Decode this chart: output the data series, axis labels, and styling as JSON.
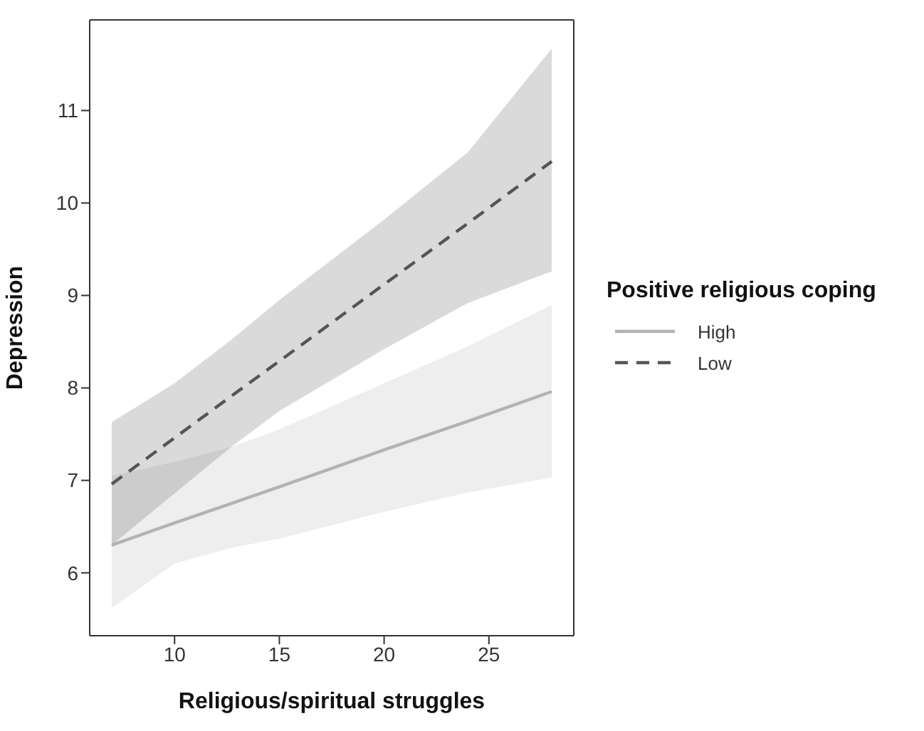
{
  "chart_data": {
    "type": "line",
    "xlabel": "Religious/spiritual struggles",
    "ylabel": "Depression",
    "legend_title": "Positive religious coping",
    "x": [
      7,
      10,
      12.7,
      15,
      20,
      24,
      28
    ],
    "xlim": [
      5.95,
      29.05
    ],
    "xticks": [
      10,
      15,
      20,
      25
    ],
    "ylim": [
      5.32,
      11.98
    ],
    "yticks": [
      6,
      7,
      8,
      9,
      10,
      11
    ],
    "legend": "right",
    "marker": "none",
    "series": [
      {
        "name": "High",
        "color": "#b3b3b3",
        "line_style": "solid",
        "values": [
          6.3,
          6.54,
          6.75,
          6.93,
          7.33,
          7.64,
          7.96
        ],
        "lower": [
          5.62,
          6.1,
          6.27,
          6.37,
          6.66,
          6.87,
          7.03
        ],
        "upper": [
          7.05,
          7.2,
          7.36,
          7.55,
          8.05,
          8.45,
          8.9
        ]
      },
      {
        "name": "Low",
        "color": "#555555",
        "line_style": "dashed",
        "values": [
          6.96,
          7.46,
          7.91,
          8.29,
          9.12,
          9.78,
          10.45
        ],
        "lower": [
          6.3,
          6.86,
          7.36,
          7.75,
          8.42,
          8.92,
          9.26
        ],
        "upper": [
          7.63,
          8.05,
          8.52,
          8.95,
          9.82,
          10.55,
          11.67
        ]
      }
    ]
  }
}
